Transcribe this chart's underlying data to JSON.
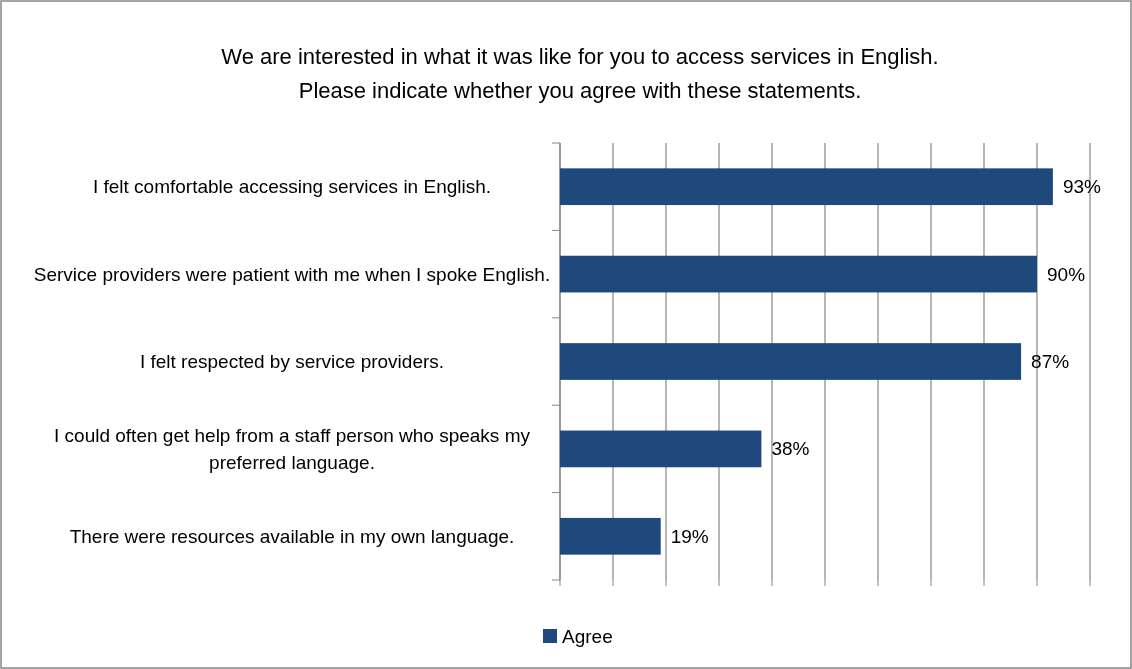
{
  "chart_data": {
    "type": "bar",
    "orientation": "horizontal",
    "title": "We are interested in what it was like for you to access services in English.",
    "subtitle": "Please indicate whether you agree with these statements.",
    "categories": [
      "I felt comfortable accessing services in English.",
      "Service providers were patient with me when I spoke English.",
      "I felt respected by service providers.",
      "I could often get help from a staff person who speaks my preferred language.",
      "There were resources available in my own language."
    ],
    "series": [
      {
        "name": "Agree",
        "color": "#1f497d",
        "values": [
          93,
          90,
          87,
          38,
          19
        ],
        "value_labels": [
          "93%",
          "90%",
          "87%",
          "38%",
          "19%"
        ]
      }
    ],
    "xlim": [
      0,
      100
    ],
    "xticks": [
      {
        "value": 0,
        "label": null
      },
      {
        "value": 10,
        "label": null
      },
      {
        "value": 20,
        "label": null
      },
      {
        "value": 30,
        "label": null
      },
      {
        "value": 40,
        "label": null
      },
      {
        "value": 50,
        "label": null
      },
      {
        "value": 60,
        "label": null
      },
      {
        "value": 70,
        "label": null
      },
      {
        "value": 80,
        "label": null
      },
      {
        "value": 90,
        "label": null
      },
      {
        "value": 100,
        "label": null
      }
    ],
    "grid": "x",
    "legend": "bottom"
  }
}
